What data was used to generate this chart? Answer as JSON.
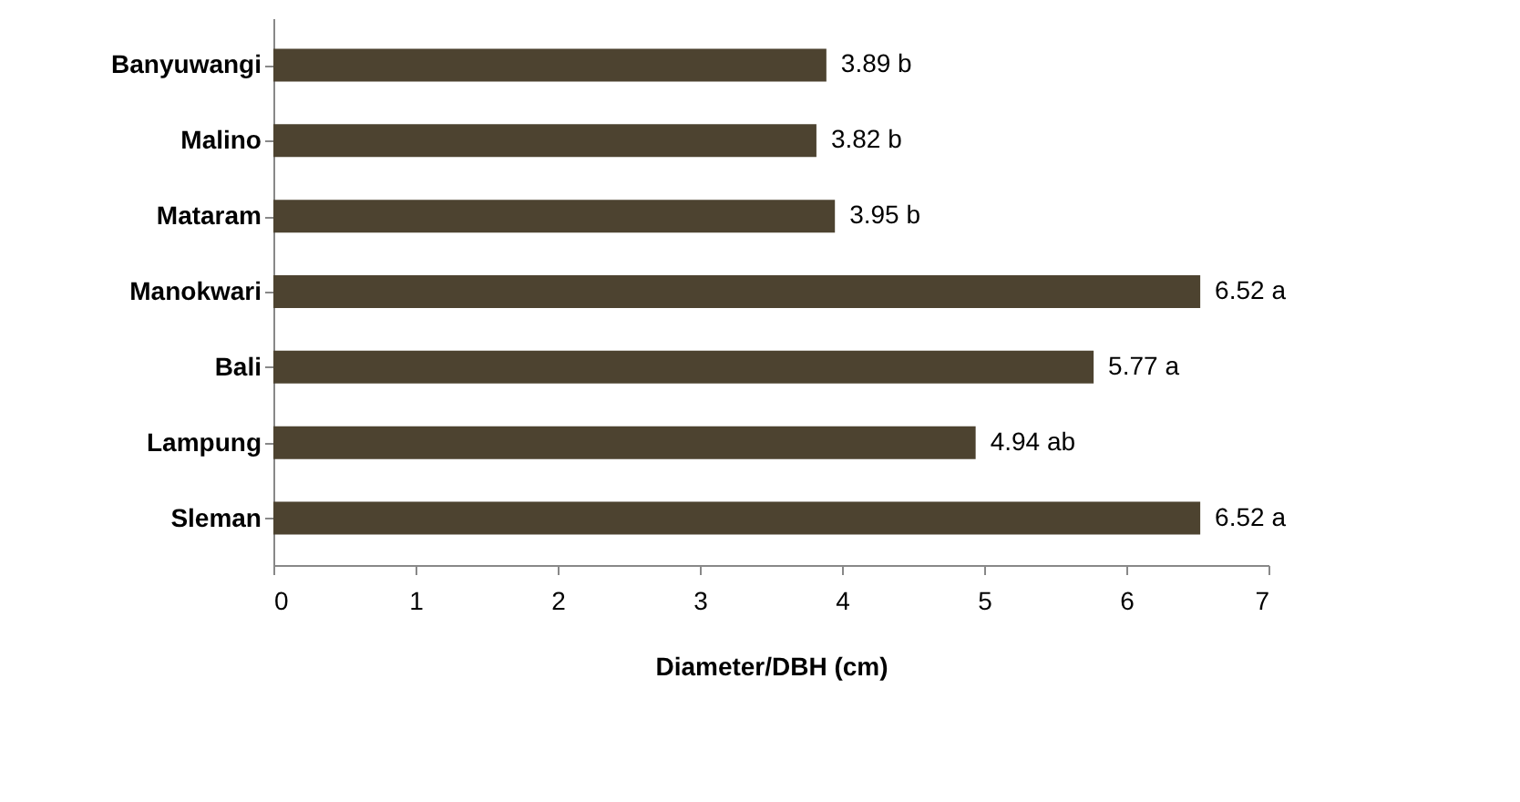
{
  "chart_data": {
    "type": "bar",
    "orientation": "horizontal",
    "categories": [
      "Banyuwangi",
      "Malino",
      "Mataram",
      "Manokwari",
      "Bali",
      "Lampung",
      "Sleman"
    ],
    "values": [
      3.89,
      3.82,
      3.95,
      6.52,
      5.77,
      4.94,
      6.52
    ],
    "value_labels": [
      "3.89 b",
      "3.82 b",
      "3.95 b",
      "6.52 a",
      "5.77 a",
      "4.94 ab",
      "6.52 a"
    ],
    "color": "#4d4330",
    "xlim": [
      0,
      7
    ],
    "xticks": [
      0,
      1,
      2,
      3,
      4,
      5,
      6,
      7
    ],
    "xlabel": "Diameter/DBH  (cm)",
    "grid": false
  }
}
